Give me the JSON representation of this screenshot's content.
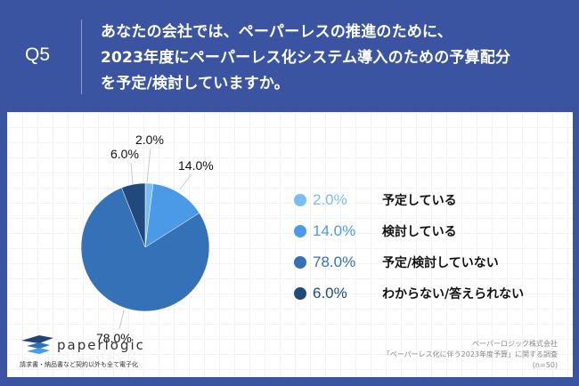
{
  "header": {
    "question_id": "Q5",
    "question_lines": [
      "あなたの会社では、ペーパーレスの推進のために、",
      "2023年度にペーパーレス化システム導入のための予算配分",
      "を予定/検討していますか。"
    ]
  },
  "legend": [
    {
      "value": "2.0%",
      "label": "予定している",
      "color": "#7cbcf5"
    },
    {
      "value": "14.0%",
      "label": "検討している",
      "color": "#4a9ae8"
    },
    {
      "value": "78.0%",
      "label": "予定/検討していない",
      "color": "#3571b6"
    },
    {
      "value": "6.0%",
      "label": "わからない/答えられない",
      "color": "#22497c"
    }
  ],
  "pie_labels": {
    "s0": "2.0%",
    "s1": "14.0%",
    "s2": "78.0%",
    "s3": "6.0%"
  },
  "logo": {
    "name": "paperlogic",
    "tagline": "請求書・納品書など契約以外も全て電子化"
  },
  "source": {
    "company": "ペーパーロジック株式会社",
    "survey": "「ペーパーレス化に伴う2023年度予算」に関する調査",
    "sample": "(n=50)"
  },
  "chart_data": {
    "type": "pie",
    "title": "あなたの会社では、ペーパーレスの推進のために、2023年度にペーパーレス化システム導入のための予算配分を予定/検討していますか。",
    "categories": [
      "予定している",
      "検討している",
      "予定/検討していない",
      "わからない/答えられない"
    ],
    "values": [
      2.0,
      14.0,
      78.0,
      6.0
    ],
    "unit": "%",
    "colors": [
      "#7cbcf5",
      "#4a9ae8",
      "#3571b6",
      "#22497c"
    ],
    "legend_position": "right",
    "sample_size": 50
  }
}
